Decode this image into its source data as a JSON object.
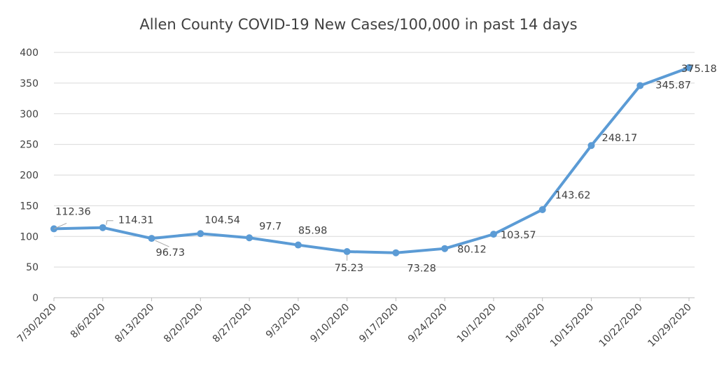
{
  "chart_data": {
    "type": "line",
    "title": "Allen County COVID-19 New Cases/100,000 in past 14 days",
    "xlabel": "",
    "ylabel": "",
    "categories": [
      "7/30/2020",
      "8/6/2020",
      "8/13/2020",
      "8/20/2020",
      "8/27/2020",
      "9/3/2020",
      "9/10/2020",
      "9/17/2020",
      "9/24/2020",
      "10/1/2020",
      "10/8/2020",
      "10/15/2020",
      "10/22/2020",
      "10/29/2020"
    ],
    "series": [
      {
        "values": [
          112.36,
          114.31,
          96.73,
          104.54,
          97.7,
          85.98,
          75.23,
          73.28,
          80.12,
          103.57,
          143.62,
          248.17,
          345.87,
          375.18
        ],
        "labels": [
          "112.36",
          "114.31",
          "96.73",
          "104.54",
          "97.7",
          "85.98",
          "75.23",
          "73.28",
          "80.12",
          "103.57",
          "143.62",
          "248.17",
          "345.87",
          "375.18"
        ],
        "color": "#5B9BD5"
      }
    ],
    "ylim": [
      0,
      400
    ],
    "yticks": [
      0,
      50,
      100,
      150,
      200,
      250,
      300,
      350,
      400
    ],
    "ytick_labels": [
      "0",
      "50",
      "100",
      "150",
      "200",
      "250",
      "300",
      "350",
      "400"
    ],
    "grid": true,
    "legend": "none",
    "colors": {
      "line": "#5B9BD5",
      "grid": "#D9D9D9",
      "text": "#404040"
    }
  }
}
